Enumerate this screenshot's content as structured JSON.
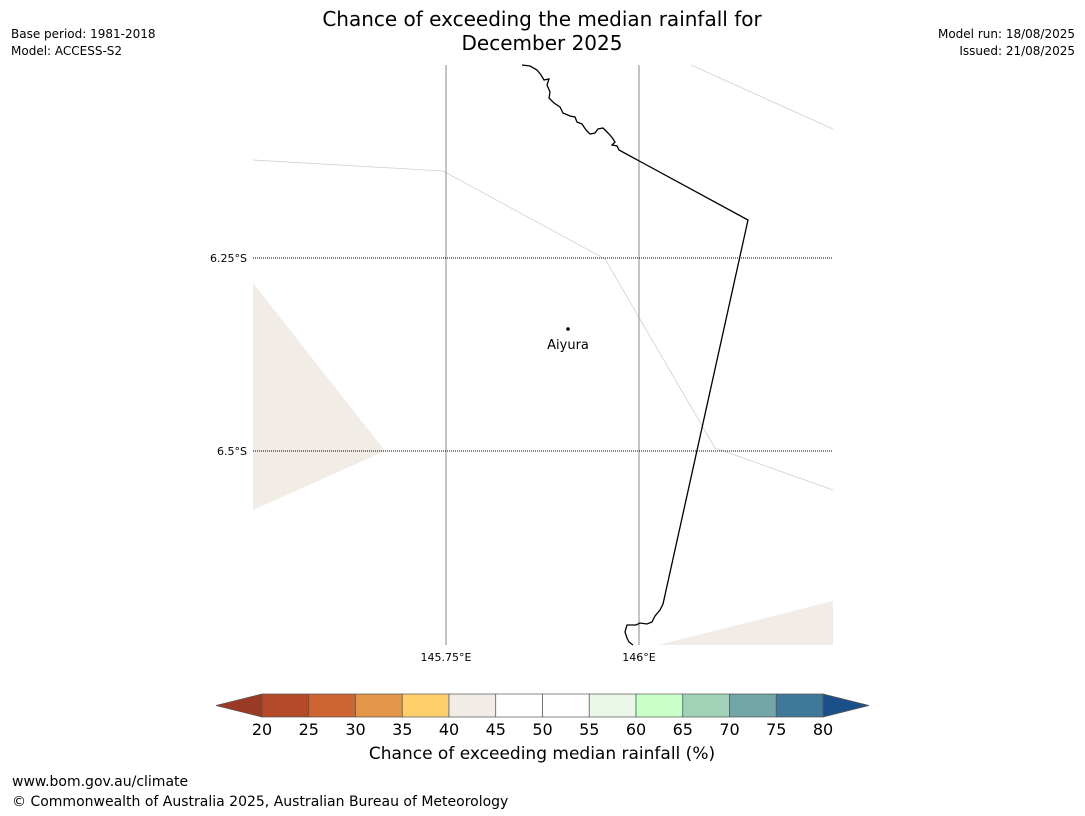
{
  "header": {
    "title_line1": "Chance of exceeding the median rainfall for",
    "title_line2": "December 2025",
    "base_period": "Base period: 1981-2018",
    "model": "Model: ACCESS-S2",
    "model_run": "Model run: 18/08/2025",
    "issued": "Issued: 21/08/2025"
  },
  "map": {
    "lat_labels": [
      "6.25°S",
      "6.5°S"
    ],
    "lon_labels": [
      "145.75°E",
      "146°E"
    ],
    "place": {
      "name": "Aiyura"
    }
  },
  "colorbar": {
    "title": "Chance of exceeding median rainfall (%)",
    "ticks": [
      "20",
      "25",
      "30",
      "35",
      "40",
      "45",
      "50",
      "55",
      "60",
      "65",
      "70",
      "75",
      "80"
    ],
    "low_extend_color": "#993a27",
    "high_extend_color": "#1a508a",
    "colors": [
      "#b44a29",
      "#cd6432",
      "#e3964a",
      "#ffcf6b",
      "#f2ece6",
      "#ffffff",
      "#ffffff",
      "#eaf6e8",
      "#c9ffc9",
      "#9fd2b7",
      "#71a5a8",
      "#3f7898"
    ]
  },
  "footer": {
    "url": "www.bom.gov.au/climate",
    "copyright": "© Commonwealth of Australia 2025, Australian Bureau of Meteorology"
  }
}
